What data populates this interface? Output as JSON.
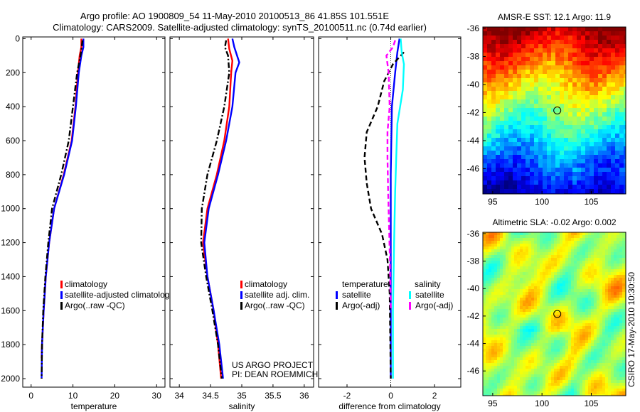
{
  "header": {
    "line1": "Argo profile: AO 1900809_54 11-May-2010 20100513_86 41.85S 101.551E",
    "line2": "Climatology: CARS2009. Satellite-adjusted climatology: synTS_20100511.nc (0.74d earlier)"
  },
  "credit": {
    "line1": "US ARGO PROJECT",
    "line2": "PI: DEAN ROEMMICH"
  },
  "side_stamp": "CSIRO 17-May-2010 10:30:50",
  "chart_data": [
    {
      "id": "temperature",
      "type": "line",
      "xlabel": "temperature",
      "ylabel": "depth",
      "xlim": [
        -2,
        32
      ],
      "ylim": [
        2050,
        -10
      ],
      "xticks": [
        0,
        10,
        20,
        30
      ],
      "yticks": [
        0,
        200,
        400,
        600,
        800,
        1000,
        1200,
        1400,
        1600,
        1800,
        2000
      ],
      "legend": [
        "climatology",
        "satellite-adjusted climatology",
        "Argo(..raw -QC)"
      ],
      "series": [
        {
          "name": "climatology",
          "color": "#ff0000",
          "dash": "solid",
          "points": [
            [
              12.0,
              0
            ],
            [
              12.0,
              50
            ],
            [
              11.6,
              100
            ],
            [
              11.2,
              200
            ],
            [
              10.6,
              400
            ],
            [
              9.7,
              600
            ],
            [
              7.8,
              800
            ],
            [
              5.5,
              1000
            ],
            [
              4.3,
              1200
            ],
            [
              3.5,
              1400
            ],
            [
              3.0,
              1600
            ],
            [
              2.6,
              1800
            ],
            [
              2.5,
              1880
            ]
          ]
        },
        {
          "name": "satellite-adjusted climatology",
          "color": "#0000ff",
          "dash": "solid",
          "points": [
            [
              12.5,
              0
            ],
            [
              12.5,
              50
            ],
            [
              12.0,
              100
            ],
            [
              11.4,
              200
            ],
            [
              10.7,
              400
            ],
            [
              9.8,
              600
            ],
            [
              7.9,
              800
            ],
            [
              5.5,
              1000
            ],
            [
              4.3,
              1200
            ],
            [
              3.5,
              1400
            ],
            [
              3.0,
              1600
            ],
            [
              2.6,
              1800
            ],
            [
              2.5,
              2000
            ]
          ]
        },
        {
          "name": "Argo(..raw -QC)",
          "color": "#000000",
          "dash": "dashdot",
          "points": [
            [
              12.3,
              10
            ],
            [
              11.8,
              100
            ],
            [
              11.0,
              200
            ],
            [
              10.0,
              400
            ],
            [
              9.0,
              600
            ],
            [
              7.2,
              800
            ],
            [
              5.0,
              1000
            ],
            [
              4.1,
              1200
            ],
            [
              3.4,
              1400
            ],
            [
              2.9,
              1600
            ],
            [
              2.6,
              1800
            ],
            [
              2.5,
              2000
            ]
          ]
        }
      ]
    },
    {
      "id": "salinity",
      "type": "line",
      "xlabel": "salinity",
      "ylabel": "depth",
      "xlim": [
        33.85,
        36.15
      ],
      "ylim": [
        2050,
        -10
      ],
      "xticks": [
        34,
        34.5,
        35,
        35.5,
        36
      ],
      "legend": [
        "climatology",
        "satellite adj. clim.",
        "Argo(..raw -QC)"
      ],
      "series": [
        {
          "name": "climatology",
          "color": "#ff0000",
          "dash": "solid",
          "points": [
            [
              34.78,
              0
            ],
            [
              34.8,
              60
            ],
            [
              34.85,
              130
            ],
            [
              34.83,
              200
            ],
            [
              34.8,
              400
            ],
            [
              34.72,
              600
            ],
            [
              34.6,
              800
            ],
            [
              34.45,
              1000
            ],
            [
              34.38,
              1200
            ],
            [
              34.45,
              1400
            ],
            [
              34.55,
              1600
            ],
            [
              34.62,
              1800
            ],
            [
              34.67,
              2000
            ]
          ]
        },
        {
          "name": "satellite adj. clim.",
          "color": "#0000ff",
          "dash": "solid",
          "points": [
            [
              34.85,
              0
            ],
            [
              34.88,
              50
            ],
            [
              34.96,
              140
            ],
            [
              34.9,
              200
            ],
            [
              34.85,
              400
            ],
            [
              34.75,
              600
            ],
            [
              34.62,
              800
            ],
            [
              34.47,
              1000
            ],
            [
              34.4,
              1200
            ],
            [
              34.45,
              1400
            ],
            [
              34.55,
              1600
            ],
            [
              34.64,
              1800
            ],
            [
              34.7,
              2000
            ]
          ]
        },
        {
          "name": "Argo(..raw -QC)",
          "color": "#000000",
          "dash": "dashdot",
          "points": [
            [
              34.75,
              10
            ],
            [
              34.73,
              50
            ],
            [
              34.78,
              100
            ],
            [
              34.8,
              200
            ],
            [
              34.72,
              400
            ],
            [
              34.6,
              600
            ],
            [
              34.45,
              800
            ],
            [
              34.36,
              1000
            ],
            [
              34.35,
              1200
            ],
            [
              34.43,
              1400
            ],
            [
              34.53,
              1600
            ],
            [
              34.62,
              1800
            ],
            [
              34.68,
              2000
            ]
          ]
        }
      ]
    },
    {
      "id": "difference",
      "type": "line",
      "xlabel": "difference from climatology",
      "ylabel": "depth",
      "xlim": [
        -3.3,
        3.2
      ],
      "ylim": [
        2050,
        -10
      ],
      "xticks": [
        -2,
        0,
        2
      ],
      "legend_groups": {
        "left_title": "temperature",
        "right_title": "salinity"
      },
      "legend": [
        "satellite",
        "Argo(-adj)",
        "satellite",
        "Argo(-adj)"
      ],
      "series": [
        {
          "name": "temperature satellite",
          "color": "#0000ff",
          "dash": "solid",
          "points": [
            [
              0.4,
              0
            ],
            [
              0.3,
              80
            ],
            [
              0.2,
              200
            ],
            [
              0.05,
              400
            ],
            [
              0.0,
              800
            ],
            [
              0.0,
              1200
            ],
            [
              0.0,
              1600
            ],
            [
              0.0,
              2000
            ]
          ]
        },
        {
          "name": "temperature Argo(-adj)",
          "color": "#000000",
          "dash": "dash",
          "points": [
            [
              0.6,
              80
            ],
            [
              0.1,
              150
            ],
            [
              -0.3,
              250
            ],
            [
              -0.6,
              400
            ],
            [
              -1.1,
              550
            ],
            [
              -1.2,
              700
            ],
            [
              -1.1,
              850
            ],
            [
              -0.9,
              1000
            ],
            [
              -0.4,
              1150
            ],
            [
              -0.15,
              1300
            ],
            [
              -0.05,
              1500
            ],
            [
              0.0,
              2000
            ]
          ]
        },
        {
          "name": "salinity satellite",
          "color": "#00ffff",
          "dash": "solid",
          "points": [
            [
              0.45,
              0
            ],
            [
              0.5,
              80
            ],
            [
              0.6,
              150
            ],
            [
              0.55,
              300
            ],
            [
              0.3,
              500
            ],
            [
              0.25,
              700
            ],
            [
              0.2,
              900
            ],
            [
              0.15,
              1200
            ],
            [
              0.1,
              1600
            ],
            [
              0.1,
              2000
            ]
          ]
        },
        {
          "name": "salinity Argo(-adj)",
          "color": "#ff00ff",
          "dash": "dash",
          "points": [
            [
              0.2,
              10
            ],
            [
              0.1,
              50
            ],
            [
              -0.2,
              100
            ],
            [
              -0.1,
              200
            ],
            [
              -0.05,
              400
            ],
            [
              -0.15,
              550
            ],
            [
              -0.15,
              700
            ],
            [
              -0.12,
              900
            ],
            [
              -0.08,
              1100
            ],
            [
              -0.04,
              1300
            ],
            [
              0.0,
              1600
            ]
          ]
        }
      ]
    },
    {
      "id": "sst_map",
      "type": "heatmap",
      "title": "AMSR-E SST: 12.1 Argo: 11.9",
      "xticks": [
        95,
        100,
        105
      ],
      "yticks": [
        -36,
        -38,
        -40,
        -42,
        -44,
        -46
      ],
      "xlim": [
        94,
        108.5
      ],
      "ylim": [
        -47.8,
        -35.9
      ],
      "marker": [
        101.55,
        -41.85
      ]
    },
    {
      "id": "sla_map",
      "type": "heatmap",
      "title": "Altimetric SLA: -0.02 Argo: 0.002",
      "xticks": [
        95,
        100,
        105
      ],
      "yticks": [
        -36,
        -38,
        -40,
        -42,
        -44,
        -46
      ],
      "xlim": [
        94,
        108.5
      ],
      "ylim": [
        -47.8,
        -35.9
      ],
      "marker": [
        101.55,
        -41.85
      ]
    }
  ]
}
